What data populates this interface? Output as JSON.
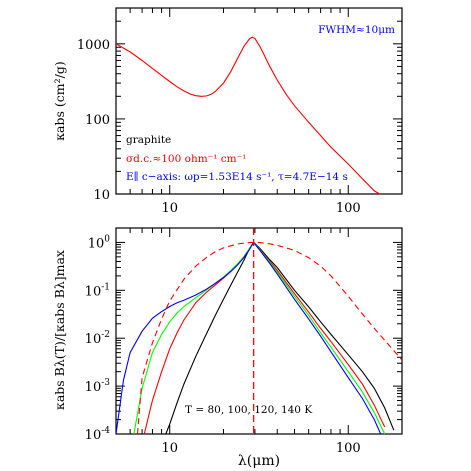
{
  "chart_data": [
    {
      "type": "line",
      "panel": "top",
      "xscale": "log",
      "yscale": "log",
      "xlim": [
        5,
        200
      ],
      "ylim": [
        10,
        3000
      ],
      "ylabel": "κabs (cm²/g)",
      "x_ticks": [
        {
          "v": 10,
          "label": "10"
        },
        {
          "v": 100,
          "label": "100"
        }
      ],
      "y_ticks": [
        {
          "v": 10,
          "label": "10"
        },
        {
          "v": 100,
          "label": "100"
        },
        {
          "v": 1000,
          "label": "1000"
        }
      ],
      "annotations": [
        {
          "text": "FWHM≈10μm",
          "color": "#0000ff"
        },
        {
          "text": "graphite",
          "color": "#000000"
        },
        {
          "text": "σd.c.≈100 ohm⁻¹ cm⁻¹",
          "color": "#ff0000"
        },
        {
          "text": "E∥ c−axis: ωp=1.53E14 s⁻¹, τ=4.7E−14 s",
          "color": "#0000ff"
        }
      ],
      "series": [
        {
          "color": "#ff0000",
          "dashed": false,
          "x": [
            5,
            6,
            7,
            8,
            9,
            10,
            11,
            12,
            13,
            14,
            15,
            16,
            17,
            18,
            20,
            22,
            24,
            26,
            28,
            29,
            30,
            32,
            34,
            36,
            40,
            45,
            50,
            60,
            70,
            80,
            100,
            120,
            140,
            150
          ],
          "y": [
            1000,
            780,
            600,
            470,
            380,
            315,
            268,
            236,
            215,
            204,
            200,
            202,
            212,
            232,
            300,
            430,
            640,
            920,
            1170,
            1230,
            1180,
            920,
            690,
            520,
            330,
            210,
            150,
            90,
            60,
            42,
            25,
            16,
            11,
            10
          ]
        }
      ]
    },
    {
      "type": "line",
      "panel": "bottom",
      "xscale": "log",
      "yscale": "log",
      "xlim": [
        5,
        200
      ],
      "ylim": [
        0.0001,
        2
      ],
      "xlabel": "λ(μm)",
      "ylabel": "κabs Bλ(T)/[κabs Bλ]max",
      "x_ticks": [
        {
          "v": 10,
          "label": "10"
        },
        {
          "v": 100,
          "label": "100"
        }
      ],
      "y_ticks": [
        {
          "v": 1,
          "label": "10^0",
          "base": "10",
          "exp": "0"
        },
        {
          "v": 0.1,
          "label": "10^-1",
          "base": "10",
          "exp": "-1"
        },
        {
          "v": 0.01,
          "label": "10^-2",
          "base": "10",
          "exp": "-2"
        },
        {
          "v": 0.001,
          "label": "10^-3",
          "base": "10",
          "exp": "-3"
        },
        {
          "v": 0.0001,
          "label": "10^-4",
          "base": "10",
          "exp": "-4"
        }
      ],
      "annotations": [
        {
          "text": "T = 80, 100, 120, 140 K",
          "color": "#000000"
        }
      ],
      "vline": {
        "x": 29.5,
        "color": "#ff0000",
        "dashed": true
      },
      "series": [
        {
          "color": "#000000",
          "dashed": false,
          "x": [
            9.5,
            10,
            11,
            12,
            14,
            16,
            18,
            20,
            22,
            24,
            26,
            28,
            29.5,
            32,
            36,
            40,
            50,
            60,
            70,
            80,
            100,
            120,
            140,
            160,
            180
          ],
          "y": [
            0.0001,
            0.00016,
            0.00045,
            0.0011,
            0.0042,
            0.012,
            0.03,
            0.065,
            0.13,
            0.24,
            0.42,
            0.75,
            1.0,
            0.75,
            0.45,
            0.3,
            0.1,
            0.045,
            0.022,
            0.012,
            0.0045,
            0.002,
            0.0009,
            0.00035,
            0.00012
          ]
        },
        {
          "color": "#ff0000",
          "dashed": false,
          "x": [
            7.2,
            8,
            9,
            10,
            11,
            12,
            14,
            16,
            18,
            20,
            22,
            24,
            26,
            28,
            29.5,
            32,
            36,
            40,
            50,
            60,
            70,
            80,
            100,
            120,
            140,
            160
          ],
          "y": [
            0.0001,
            0.0005,
            0.002,
            0.006,
            0.013,
            0.024,
            0.055,
            0.09,
            0.13,
            0.18,
            0.25,
            0.35,
            0.5,
            0.75,
            1.0,
            0.72,
            0.42,
            0.26,
            0.085,
            0.035,
            0.016,
            0.0085,
            0.0028,
            0.0011,
            0.0004,
            0.00014
          ]
        },
        {
          "color": "#00ff00",
          "dashed": false,
          "x": [
            6.3,
            7,
            8,
            9,
            10,
            11,
            12,
            14,
            16,
            18,
            20,
            22,
            24,
            26,
            28,
            29.5,
            32,
            36,
            40,
            50,
            60,
            70,
            80,
            100,
            120,
            140,
            160
          ],
          "y": [
            0.0001,
            0.0009,
            0.005,
            0.012,
            0.022,
            0.034,
            0.046,
            0.07,
            0.1,
            0.14,
            0.19,
            0.26,
            0.36,
            0.5,
            0.74,
            1.0,
            0.7,
            0.4,
            0.24,
            0.075,
            0.03,
            0.013,
            0.0065,
            0.002,
            0.00075,
            0.00028,
            0.0001
          ]
        },
        {
          "color": "#0000ff",
          "dashed": false,
          "x": [
            5,
            5.5,
            6,
            7,
            8,
            9,
            10,
            11,
            12,
            14,
            16,
            18,
            20,
            22,
            24,
            26,
            28,
            29.5,
            32,
            36,
            40,
            50,
            60,
            70,
            80,
            100,
            120,
            140,
            152
          ],
          "y": [
            0.0001,
            0.0013,
            0.005,
            0.014,
            0.026,
            0.036,
            0.046,
            0.055,
            0.062,
            0.08,
            0.105,
            0.14,
            0.185,
            0.25,
            0.34,
            0.48,
            0.72,
            1.0,
            0.68,
            0.38,
            0.22,
            0.065,
            0.025,
            0.011,
            0.0052,
            0.0015,
            0.00055,
            0.0002,
            0.0001
          ]
        },
        {
          "color": "#ff0000",
          "dashed": true,
          "x": [
            6.6,
            7,
            8,
            9,
            10,
            12,
            14,
            16,
            18,
            20,
            24,
            28,
            29.5,
            32,
            36,
            40,
            50,
            60,
            70,
            80,
            100,
            120,
            140,
            170,
            200
          ],
          "y": [
            0.0001,
            0.0015,
            0.008,
            0.025,
            0.06,
            0.17,
            0.32,
            0.48,
            0.64,
            0.77,
            0.93,
            0.99,
            1.0,
            0.99,
            0.94,
            0.87,
            0.68,
            0.48,
            0.32,
            0.2,
            0.075,
            0.032,
            0.016,
            0.007,
            0.0035
          ]
        }
      ]
    }
  ]
}
